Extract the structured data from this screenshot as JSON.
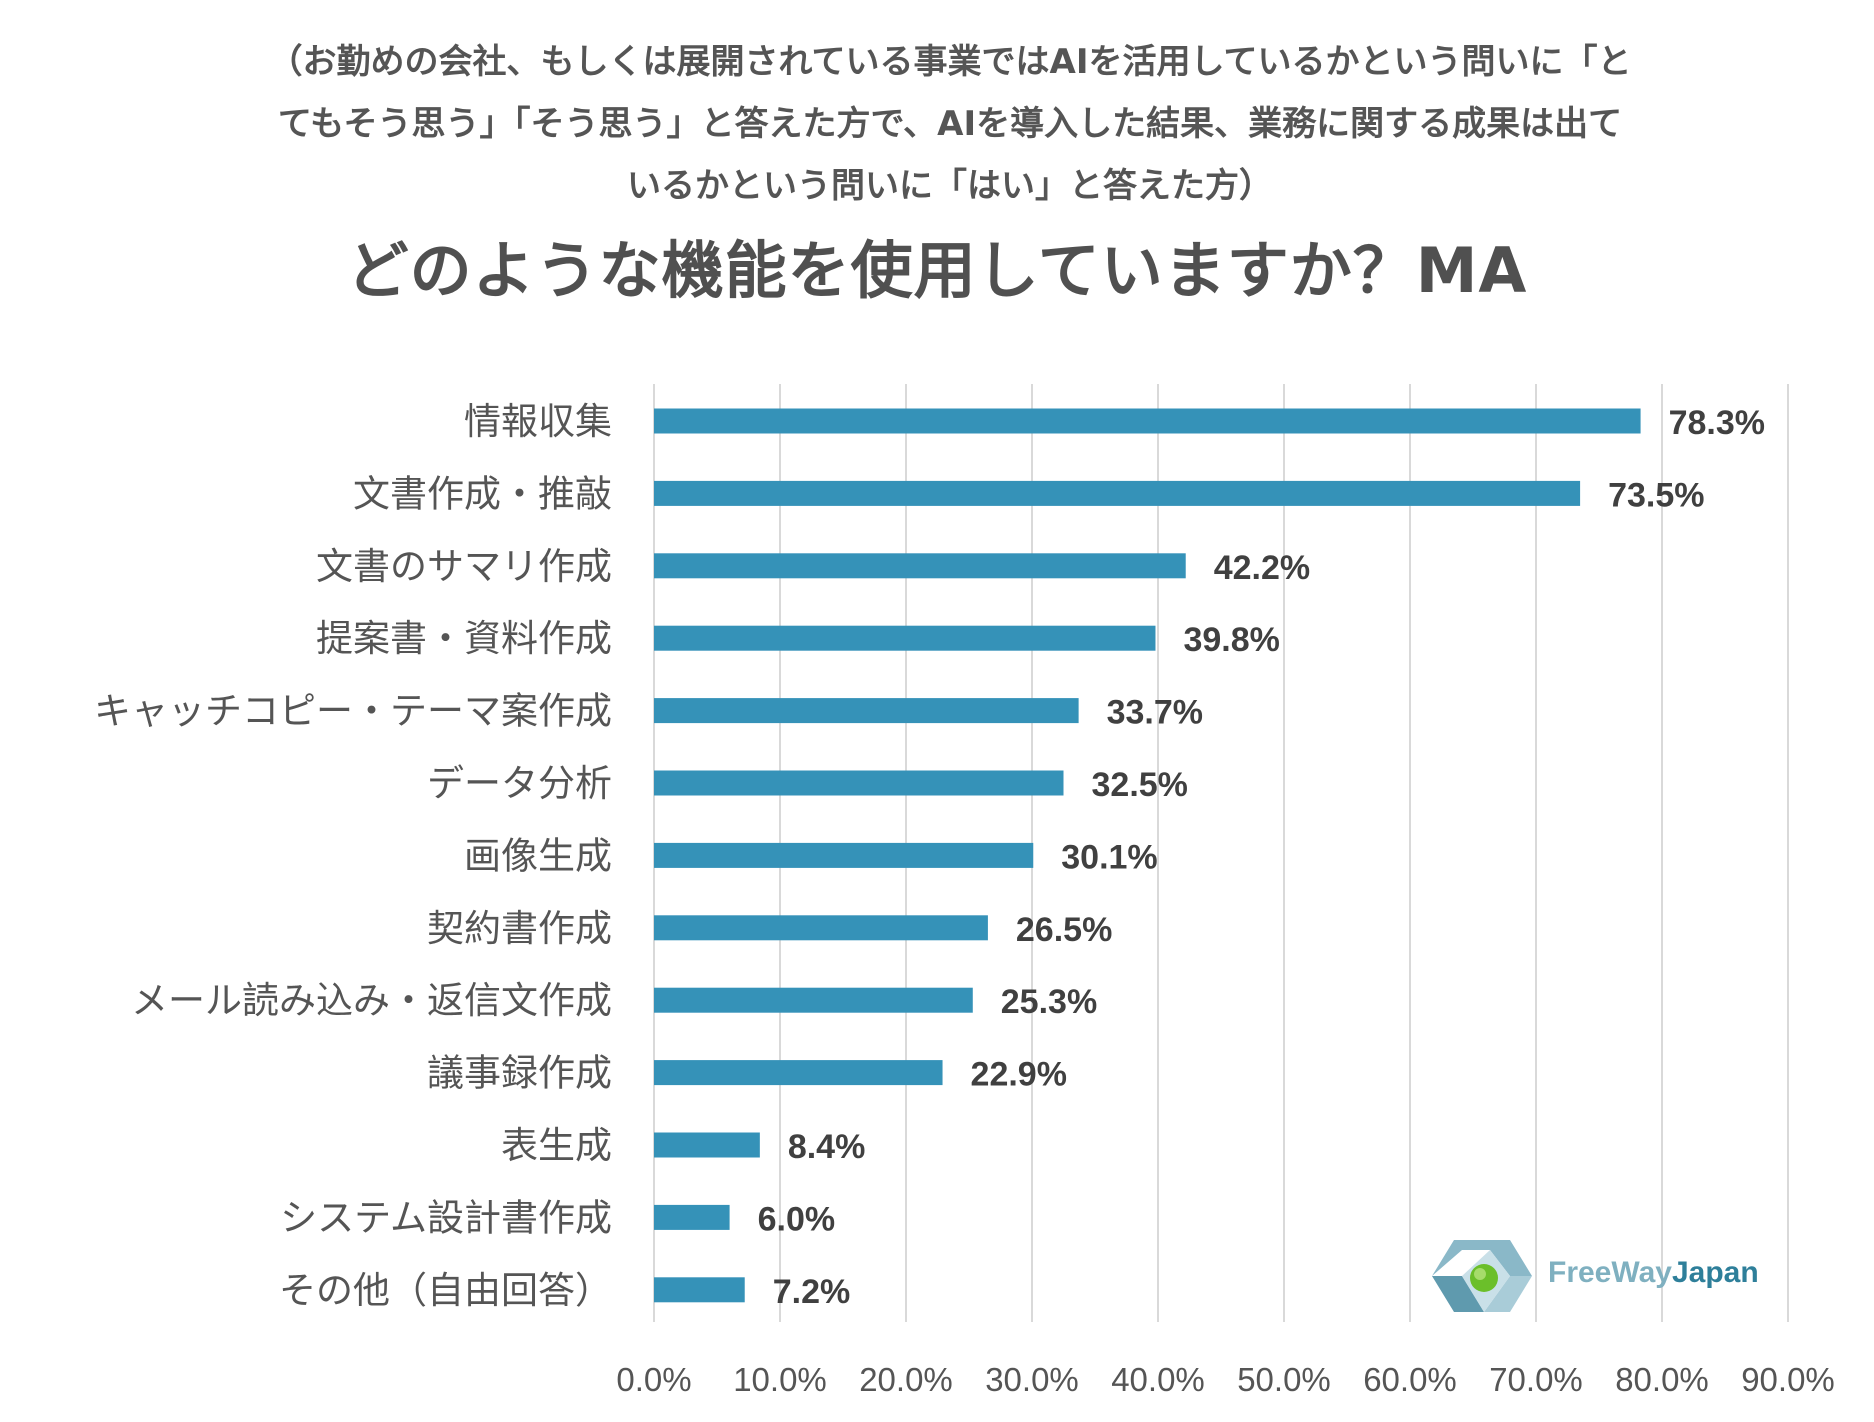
{
  "subtitle_lines": [
    "（お勤めの会社、もしくは展開されている事業ではAIを活用しているかという問いに「と",
    "てもそう思う」「そう思う」と答えた方で、AIを導入した結果、業務に関する成果は出て",
    "いるかという問いに「はい」と答えた方）"
  ],
  "title": "どのような機能を使用していますか？MA",
  "colors": {
    "bar": "#3592b8",
    "grid": "#d9d9d9"
  },
  "chart_data": {
    "type": "bar",
    "orientation": "horizontal",
    "categories": [
      "情報収集",
      "文書作成・推敲",
      "文書のサマリ作成",
      "提案書・資料作成",
      "キャッチコピー・テーマ案作成",
      "データ分析",
      "画像生成",
      "契約書作成",
      "メール読み込み・返信文作成",
      "議事録作成",
      "表生成",
      "システム設計書作成",
      "その他（自由回答）"
    ],
    "values": [
      78.3,
      73.5,
      42.2,
      39.8,
      33.7,
      32.5,
      30.1,
      26.5,
      25.3,
      22.9,
      8.4,
      6.0,
      7.2
    ],
    "value_labels": [
      "78.3%",
      "73.5%",
      "42.2%",
      "39.8%",
      "33.7%",
      "32.5%",
      "30.1%",
      "26.5%",
      "25.3%",
      "22.9%",
      "8.4%",
      "6.0%",
      "7.2%"
    ],
    "xlim": [
      0,
      90
    ],
    "xticks": [
      0,
      10,
      20,
      30,
      40,
      50,
      60,
      70,
      80,
      90
    ],
    "xtick_labels": [
      "0.0%",
      "10.0%",
      "20.0%",
      "30.0%",
      "40.0%",
      "50.0%",
      "60.0%",
      "70.0%",
      "80.0%",
      "90.0%"
    ],
    "grid": "vertical"
  },
  "logo": {
    "text_part1": "FreeWay",
    "text_part2": "Japan"
  }
}
